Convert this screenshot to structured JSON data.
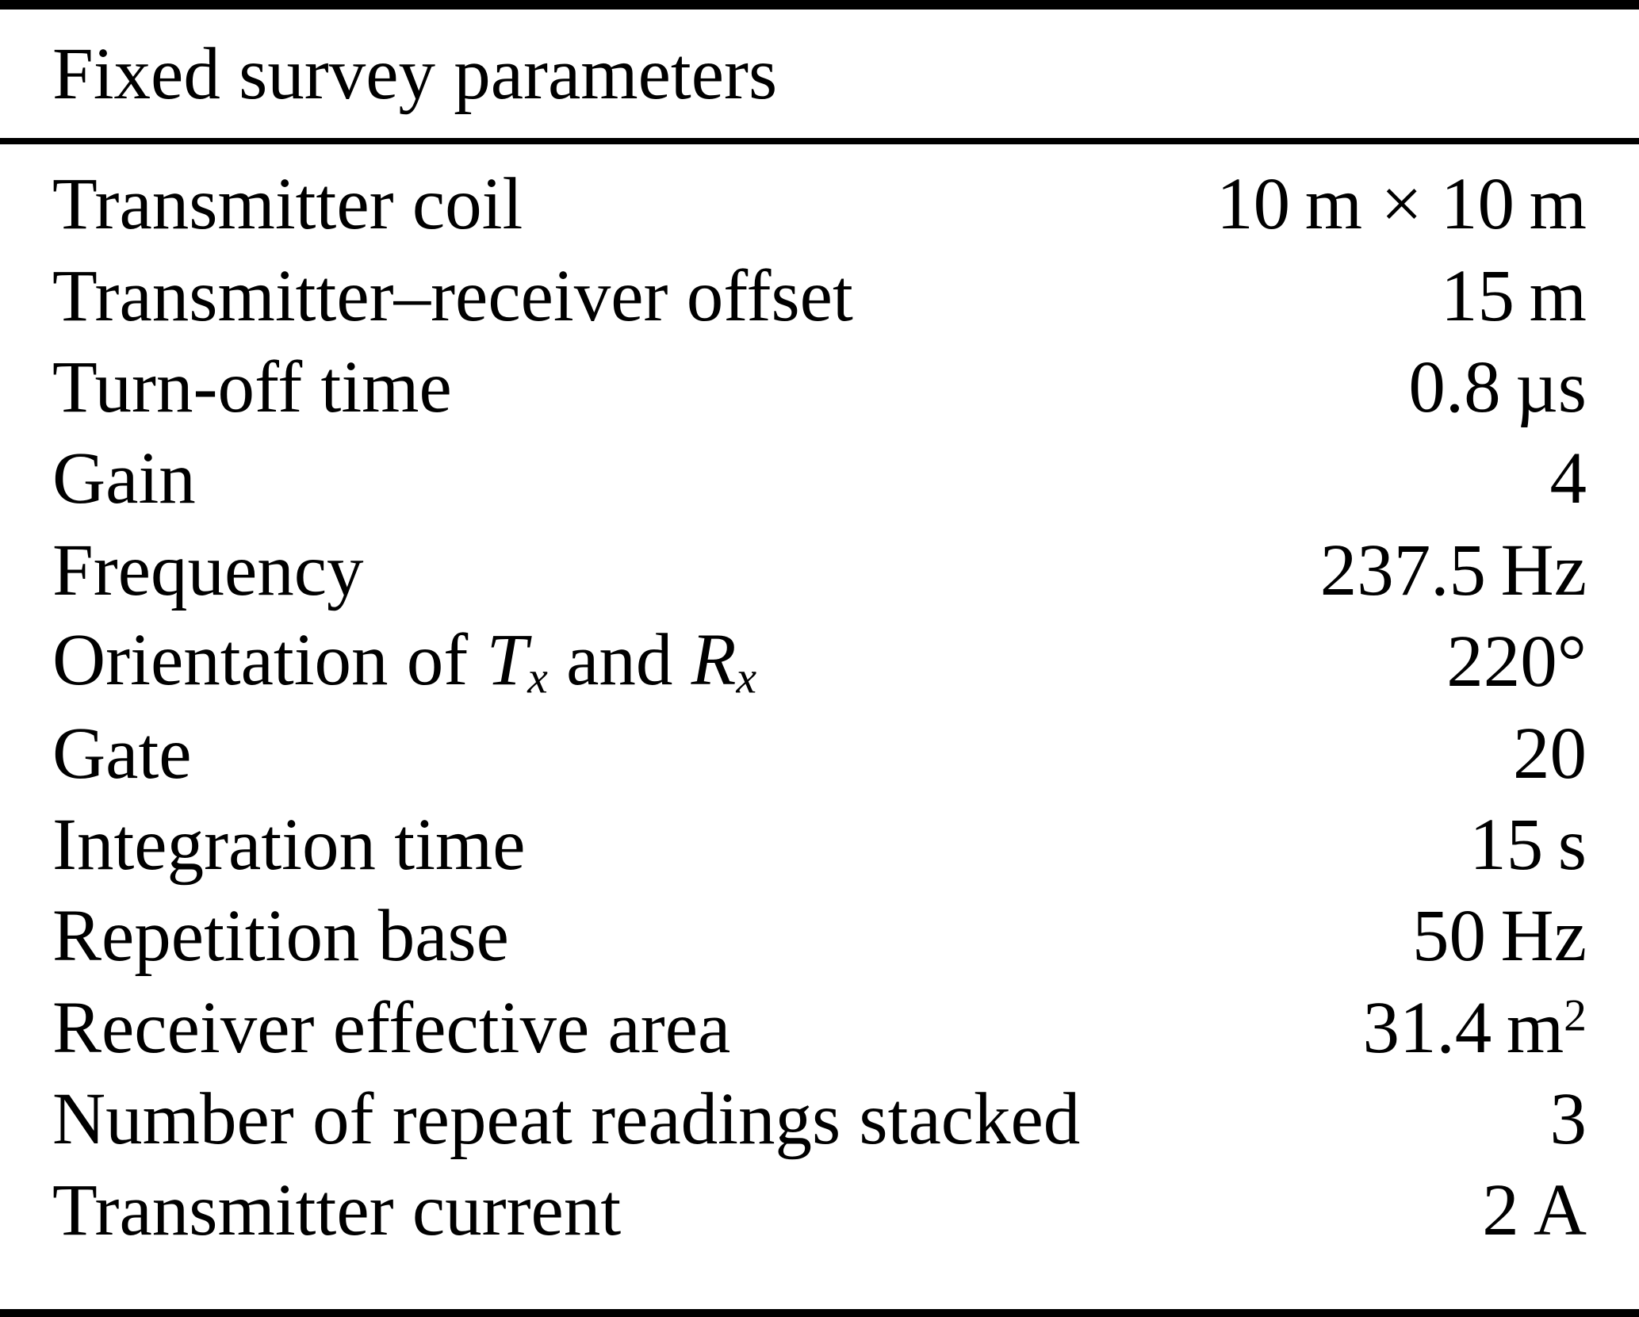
{
  "table": {
    "title": "Fixed survey parameters",
    "rows": [
      {
        "label": "Transmitter coil",
        "value": "10 m × 10 m"
      },
      {
        "label": "Transmitter–receiver offset",
        "value": "15 m"
      },
      {
        "label": "Turn-off time",
        "value": "0.8 µs"
      },
      {
        "label": "Gain",
        "value": "4"
      },
      {
        "label": "Frequency",
        "value": "237.5 Hz"
      },
      {
        "label_prefix": "Orientation of ",
        "tx_symbol": "T",
        "tx_sub": "x",
        "label_and": " and ",
        "rx_symbol": "R",
        "rx_sub": "x",
        "value": "220°"
      },
      {
        "label": "Gate",
        "value": "20"
      },
      {
        "label": "Integration time",
        "value": "15 s"
      },
      {
        "label": "Repetition base",
        "value": "50 Hz"
      },
      {
        "label": "Receiver effective area",
        "value_base": "31.4 m",
        "value_sup": "2"
      },
      {
        "label": "Number of repeat readings stacked",
        "value": "3"
      },
      {
        "label": "Transmitter current",
        "value": "2 A"
      }
    ]
  }
}
